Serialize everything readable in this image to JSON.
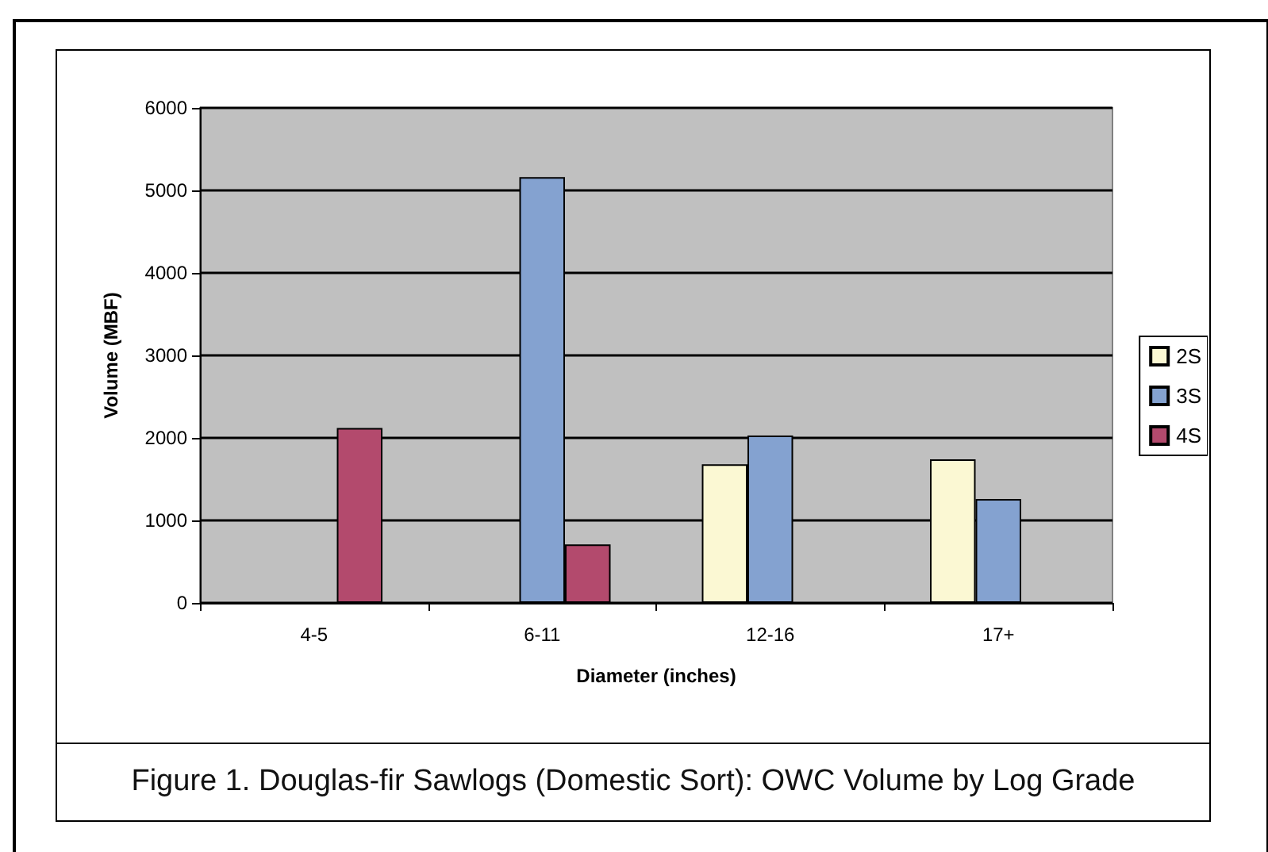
{
  "chart_data": {
    "type": "bar",
    "title": "Figure 1. Douglas-fir Sawlogs (Domestic Sort): OWC Volume by Log Grade",
    "xlabel": "Diameter (inches)",
    "ylabel": "Volume (MBF)",
    "categories": [
      "4-5",
      "6-11",
      "12-16",
      "17+"
    ],
    "series": [
      {
        "name": "2S",
        "color": "#fbf8d3",
        "values": [
          null,
          null,
          1680,
          1740
        ]
      },
      {
        "name": "3S",
        "color": "#84a2d0",
        "values": [
          null,
          5160,
          2030,
          1260
        ]
      },
      {
        "name": "4S",
        "color": "#b34a6d",
        "values": [
          2120,
          710,
          null,
          null
        ]
      }
    ],
    "ylim": [
      0,
      6000
    ],
    "yticks": [
      0,
      1000,
      2000,
      3000,
      4000,
      5000,
      6000
    ],
    "grid": "y",
    "legend": "right"
  }
}
